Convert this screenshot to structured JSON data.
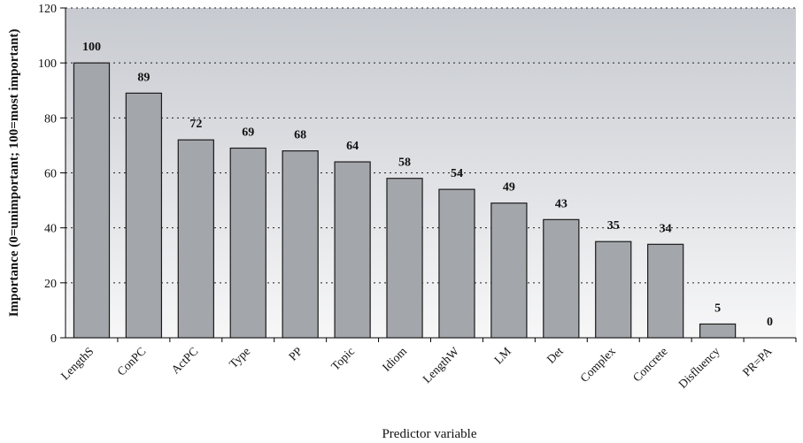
{
  "chart_data": {
    "type": "bar",
    "xlabel": "Predictor variable",
    "ylabel": "Importance (0=unimportant; 100=most important)",
    "ylim": [
      0,
      120
    ],
    "yticks": [
      0,
      20,
      40,
      60,
      80,
      100,
      120
    ],
    "grid": "horizontal dotted",
    "categories": [
      "LengthS",
      "ConPC",
      "ActPC",
      "Type",
      "PP",
      "Topic",
      "Idiom",
      "LengthW",
      "LM",
      "Det",
      "Complex",
      "Concrete",
      "Disfluency",
      "PR=PA"
    ],
    "values": [
      100,
      89,
      72,
      69,
      68,
      64,
      58,
      54,
      49,
      43,
      35,
      34,
      5,
      0
    ],
    "colors": {
      "bar_fill": "#a3a7ab",
      "bar_stroke": "#1a1a1a",
      "plot_bg_top": "#c7cad0",
      "plot_bg_bottom": "#f7f7f8",
      "grid": "#222222"
    }
  }
}
